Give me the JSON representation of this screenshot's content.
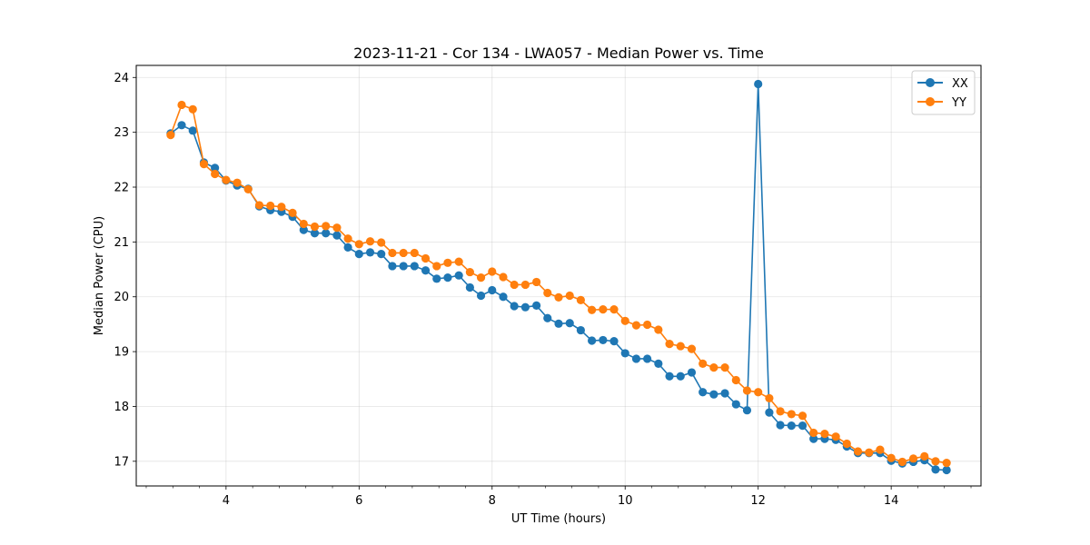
{
  "chart_data": {
    "type": "line",
    "title": "2023-11-21 - Cor 134 - LWA057 - Median Power vs. Time",
    "xlabel": "UT Time (hours)",
    "ylabel": "Median Power (CPU)",
    "xlim": [
      2.65,
      15.35
    ],
    "ylim": [
      16.55,
      24.22
    ],
    "xticks": [
      4,
      6,
      8,
      10,
      12,
      14
    ],
    "xtick_labels": [
      "4",
      "6",
      "8",
      "10",
      "12",
      "14"
    ],
    "yticks": [
      17,
      18,
      19,
      20,
      21,
      22,
      23,
      24
    ],
    "ytick_labels": [
      "17",
      "18",
      "19",
      "20",
      "21",
      "22",
      "23",
      "24"
    ],
    "grid": true,
    "legend_position": "top-right",
    "x": [
      3.167,
      3.333,
      3.5,
      3.667,
      3.833,
      4.0,
      4.167,
      4.333,
      4.5,
      4.667,
      4.833,
      5.0,
      5.167,
      5.333,
      5.5,
      5.667,
      5.833,
      6.0,
      6.167,
      6.333,
      6.5,
      6.667,
      6.833,
      7.0,
      7.167,
      7.333,
      7.5,
      7.667,
      7.833,
      8.0,
      8.167,
      8.333,
      8.5,
      8.667,
      8.833,
      9.0,
      9.167,
      9.333,
      9.5,
      9.667,
      9.833,
      10.0,
      10.167,
      10.333,
      10.5,
      10.667,
      10.833,
      11.0,
      11.167,
      11.333,
      11.5,
      11.667,
      11.833,
      12.0,
      12.167,
      12.333,
      12.5,
      12.667,
      12.833,
      13.0,
      13.167,
      13.333,
      13.5,
      13.667,
      13.833,
      14.0,
      14.167,
      14.333,
      14.5,
      14.667,
      14.833
    ],
    "series": [
      {
        "name": "XX",
        "color": "#1f77b4",
        "values": [
          22.98,
          23.13,
          23.03,
          22.45,
          22.35,
          22.12,
          22.03,
          21.97,
          21.65,
          21.58,
          21.55,
          21.46,
          21.22,
          21.16,
          21.16,
          21.12,
          20.9,
          20.78,
          20.81,
          20.78,
          20.56,
          20.56,
          20.56,
          20.48,
          20.33,
          20.35,
          20.39,
          20.17,
          20.02,
          20.12,
          20.0,
          19.83,
          19.81,
          19.84,
          19.61,
          19.51,
          19.52,
          19.39,
          19.2,
          19.21,
          19.19,
          18.97,
          18.87,
          18.87,
          18.78,
          18.55,
          18.55,
          18.62,
          18.26,
          18.22,
          18.24,
          18.04,
          17.93,
          23.88,
          17.89,
          17.66,
          17.65,
          17.65,
          17.41,
          17.41,
          17.39,
          17.27,
          17.15,
          17.15,
          17.15,
          17.01,
          16.96,
          16.99,
          17.02,
          16.85,
          16.84
        ]
      },
      {
        "name": "YY",
        "color": "#ff7f0e",
        "values": [
          22.95,
          23.5,
          23.42,
          22.42,
          22.24,
          22.13,
          22.08,
          21.96,
          21.67,
          21.66,
          21.64,
          21.53,
          21.33,
          21.28,
          21.29,
          21.26,
          21.06,
          20.96,
          21.01,
          20.99,
          20.8,
          20.8,
          20.8,
          20.7,
          20.56,
          20.62,
          20.64,
          20.45,
          20.35,
          20.46,
          20.36,
          20.22,
          20.22,
          20.27,
          20.07,
          19.99,
          20.02,
          19.94,
          19.76,
          19.77,
          19.77,
          19.56,
          19.48,
          19.49,
          19.4,
          19.14,
          19.1,
          19.05,
          18.78,
          18.71,
          18.71,
          18.48,
          18.29,
          18.26,
          18.15,
          17.91,
          17.86,
          17.83,
          17.52,
          17.5,
          17.45,
          17.32,
          17.18,
          17.16,
          17.21,
          17.06,
          16.99,
          17.05,
          17.09,
          17.0,
          16.97
        ]
      }
    ]
  }
}
